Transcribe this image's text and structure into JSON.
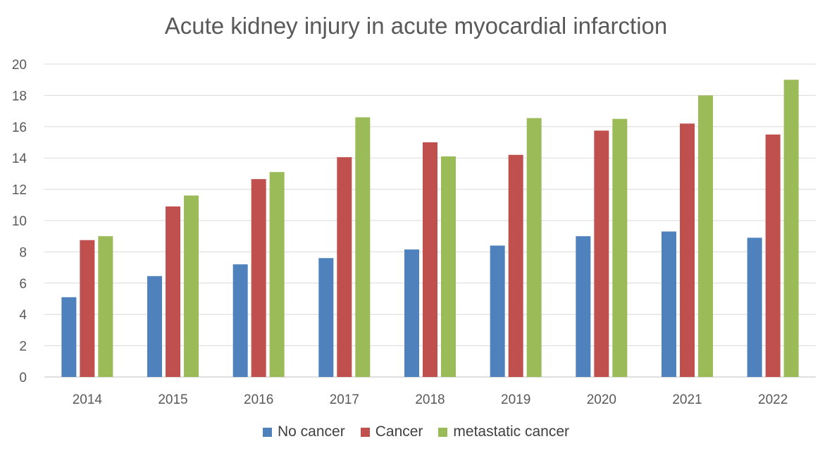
{
  "chart_data": {
    "type": "bar",
    "title": "Acute kidney injury in acute myocardial infarction",
    "xlabel": "",
    "ylabel": "",
    "categories": [
      "2014",
      "2015",
      "2016",
      "2017",
      "2018",
      "2019",
      "2020",
      "2021",
      "2022"
    ],
    "series": [
      {
        "name": "No cancer",
        "color": "#4F81BD",
        "values": [
          5.1,
          6.45,
          7.2,
          7.6,
          8.15,
          8.4,
          9.0,
          9.3,
          8.9
        ]
      },
      {
        "name": "Cancer",
        "color": "#C0504D",
        "values": [
          8.75,
          10.9,
          12.65,
          14.05,
          15.0,
          14.2,
          15.75,
          16.2,
          15.5
        ]
      },
      {
        "name": "metastatic cancer",
        "color": "#9BBB59",
        "values": [
          9.0,
          11.6,
          13.1,
          16.6,
          14.1,
          16.55,
          16.5,
          18.0,
          19.0
        ]
      }
    ],
    "ylim": [
      0,
      20
    ],
    "yticks": [
      "0",
      "2",
      "4",
      "6",
      "8",
      "10",
      "12",
      "14",
      "16",
      "18",
      "20"
    ],
    "grid": true,
    "legend_position": "bottom"
  }
}
